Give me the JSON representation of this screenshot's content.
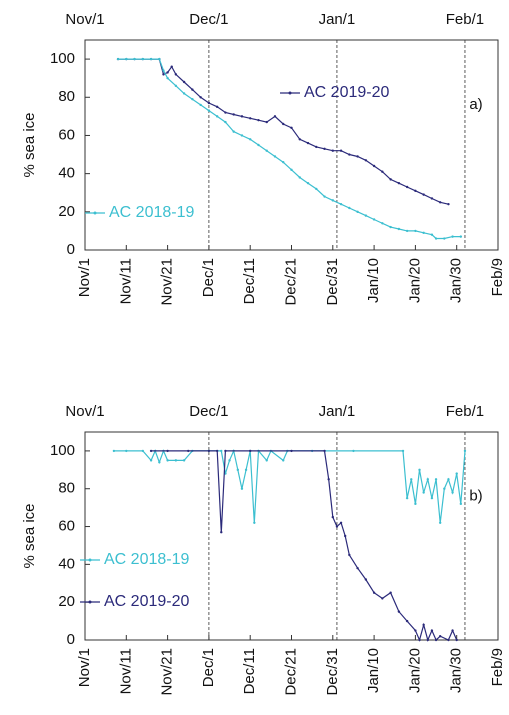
{
  "chart_data": [
    {
      "type": "line",
      "panel_label": "a)",
      "ylabel": "% sea ice",
      "xlim": [
        0,
        100
      ],
      "ylim": [
        0,
        110
      ],
      "yticks": [
        0,
        20,
        40,
        60,
        80,
        100
      ],
      "xticks": [
        {
          "value": 0,
          "label": "Nov/1"
        },
        {
          "value": 10,
          "label": "Nov/11"
        },
        {
          "value": 20,
          "label": "Nov/21"
        },
        {
          "value": 30,
          "label": "Dec/1"
        },
        {
          "value": 40,
          "label": "Dec/11"
        },
        {
          "value": 50,
          "label": "Dec/21"
        },
        {
          "value": 60,
          "label": "Dec/31"
        },
        {
          "value": 70,
          "label": "Jan/10"
        },
        {
          "value": 80,
          "label": "Jan/20"
        },
        {
          "value": 90,
          "label": "Jan/30"
        },
        {
          "value": 100,
          "label": "Feb/9"
        }
      ],
      "x2ticks": [
        {
          "value": 0,
          "label": "Nov/1"
        },
        {
          "value": 30,
          "label": "Dec/1"
        },
        {
          "value": 61,
          "label": "Jan/1"
        },
        {
          "value": 92,
          "label": "Feb/1"
        }
      ],
      "series": [
        {
          "name": "AC 2019-20",
          "color": "#2b2a7a",
          "x": [
            8,
            10,
            12,
            14,
            16,
            18,
            19,
            20,
            21,
            22,
            24,
            26,
            28,
            30,
            32,
            34,
            36,
            38,
            40,
            42,
            44,
            46,
            48,
            50,
            52,
            54,
            56,
            58,
            60,
            62,
            64,
            66,
            68,
            70,
            72,
            74,
            76,
            78,
            80,
            82,
            84,
            86,
            88
          ],
          "values": [
            100,
            100,
            100,
            100,
            100,
            100,
            92,
            93,
            96,
            92,
            88,
            84,
            80,
            77,
            75,
            72,
            71,
            70,
            69,
            68,
            67,
            70,
            66,
            64,
            58,
            56,
            54,
            53,
            52,
            52,
            50,
            49,
            47,
            44,
            41,
            37,
            35,
            33,
            31,
            29,
            27,
            25,
            24
          ]
        },
        {
          "name": "AC 2018-19",
          "color": "#3cbfd0",
          "x": [
            8,
            10,
            12,
            14,
            16,
            18,
            19,
            20,
            22,
            24,
            26,
            28,
            30,
            32,
            34,
            36,
            38,
            40,
            42,
            44,
            46,
            48,
            50,
            52,
            54,
            56,
            58,
            60,
            62,
            64,
            66,
            68,
            70,
            72,
            74,
            76,
            78,
            80,
            82,
            84,
            85,
            87,
            89,
            91
          ],
          "values": [
            100,
            100,
            100,
            100,
            100,
            100,
            94,
            90,
            86,
            82,
            79,
            76,
            73,
            70,
            67,
            62,
            60,
            58,
            55,
            52,
            49,
            46,
            42,
            38,
            35,
            32,
            28,
            26,
            24,
            22,
            20,
            18,
            16,
            14,
            12,
            11,
            10,
            10,
            9,
            8,
            6,
            6,
            7,
            7
          ]
        }
      ]
    },
    {
      "type": "line",
      "panel_label": "b)",
      "ylabel": "% sea ice",
      "xlim": [
        0,
        100
      ],
      "ylim": [
        0,
        110
      ],
      "yticks": [
        0,
        20,
        40,
        60,
        80,
        100
      ],
      "xticks": [
        {
          "value": 0,
          "label": "Nov/1"
        },
        {
          "value": 10,
          "label": "Nov/11"
        },
        {
          "value": 20,
          "label": "Nov/21"
        },
        {
          "value": 30,
          "label": "Dec/1"
        },
        {
          "value": 40,
          "label": "Dec/11"
        },
        {
          "value": 50,
          "label": "Dec/21"
        },
        {
          "value": 60,
          "label": "Dec/31"
        },
        {
          "value": 70,
          "label": "Jan/10"
        },
        {
          "value": 80,
          "label": "Jan/20"
        },
        {
          "value": 90,
          "label": "Jan/30"
        },
        {
          "value": 100,
          "label": "Feb/9"
        }
      ],
      "x2ticks": [
        {
          "value": 0,
          "label": "Nov/1"
        },
        {
          "value": 30,
          "label": "Dec/1"
        },
        {
          "value": 61,
          "label": "Jan/1"
        },
        {
          "value": 92,
          "label": "Feb/1"
        }
      ],
      "series": [
        {
          "name": "AC 2018-19",
          "color": "#3cbfd0",
          "x": [
            7,
            10,
            14,
            16,
            17,
            18,
            19,
            20,
            22,
            24,
            26,
            30,
            33,
            34,
            35,
            36,
            37,
            38,
            39,
            40,
            41,
            42,
            44,
            45,
            48,
            49,
            55,
            65,
            77,
            78,
            79,
            80,
            81,
            82,
            83,
            84,
            85,
            86,
            87,
            88,
            89,
            90,
            91,
            92
          ],
          "values": [
            100,
            100,
            100,
            95,
            100,
            94,
            100,
            95,
            95,
            95,
            100,
            100,
            100,
            88,
            95,
            100,
            90,
            80,
            90,
            100,
            62,
            100,
            95,
            100,
            95,
            100,
            100,
            100,
            100,
            75,
            85,
            72,
            90,
            78,
            85,
            75,
            85,
            62,
            80,
            85,
            78,
            88,
            72,
            100
          ]
        },
        {
          "name": "AC 2019-20",
          "color": "#2b2a7a",
          "x": [
            16,
            20,
            25,
            30,
            32,
            33,
            34,
            40,
            50,
            58,
            59,
            60,
            61,
            62,
            63,
            64,
            66,
            68,
            70,
            72,
            74,
            76,
            78,
            80,
            81,
            82,
            83,
            84,
            85,
            86,
            88,
            89,
            90
          ],
          "values": [
            100,
            100,
            100,
            100,
            100,
            57,
            100,
            100,
            100,
            100,
            85,
            65,
            60,
            62,
            55,
            45,
            38,
            32,
            25,
            22,
            25,
            15,
            10,
            5,
            0,
            8,
            0,
            5,
            0,
            2,
            0,
            5,
            0
          ]
        }
      ]
    }
  ]
}
